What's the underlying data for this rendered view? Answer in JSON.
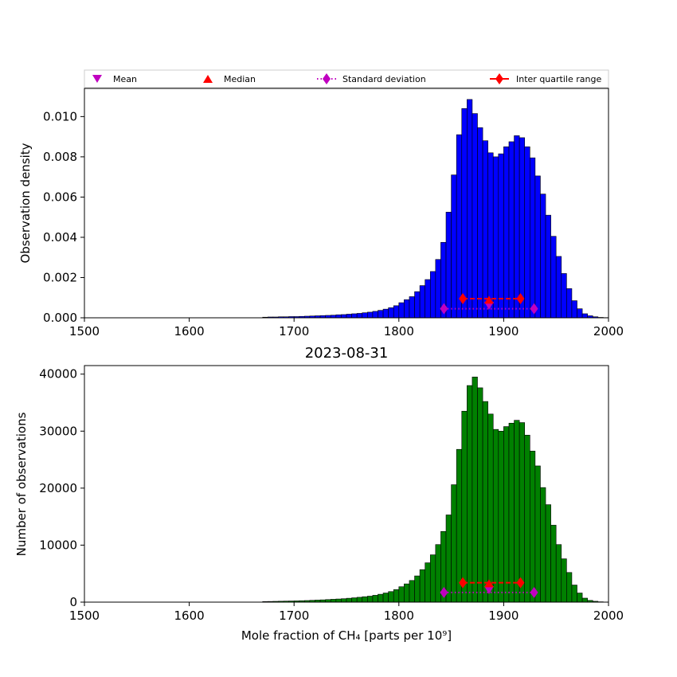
{
  "chart_data": [
    {
      "type": "bar",
      "panel": "density",
      "title": "",
      "xlabel": "",
      "ylabel": "Observation density",
      "xlim": [
        1500,
        2000
      ],
      "ylim": [
        0,
        0.0114
      ],
      "xticks": [
        1500,
        1600,
        1700,
        1800,
        1900,
        2000
      ],
      "xtick_labels": [
        "1500",
        "1600",
        "1700",
        "1800",
        "1900",
        "2000"
      ],
      "yticks": [
        0.0,
        0.002,
        0.004,
        0.006,
        0.008,
        0.01
      ],
      "ytick_labels": [
        "0.000",
        "0.002",
        "0.004",
        "0.006",
        "0.008",
        "0.010"
      ],
      "bar_color": "#0000ff",
      "bin_width": 5,
      "bin_starts": [
        1670,
        1675,
        1680,
        1685,
        1690,
        1695,
        1700,
        1705,
        1710,
        1715,
        1720,
        1725,
        1730,
        1735,
        1740,
        1745,
        1750,
        1755,
        1760,
        1765,
        1770,
        1775,
        1780,
        1785,
        1790,
        1795,
        1800,
        1805,
        1810,
        1815,
        1820,
        1825,
        1830,
        1835,
        1840,
        1845,
        1850,
        1855,
        1860,
        1865,
        1870,
        1875,
        1880,
        1885,
        1890,
        1895,
        1900,
        1905,
        1910,
        1915,
        1920,
        1925,
        1930,
        1935,
        1940,
        1945,
        1950,
        1955,
        1960,
        1965,
        1970,
        1975,
        1980,
        1985,
        1990,
        1995
      ],
      "values": [
        3e-05,
        4e-05,
        4e-05,
        5e-05,
        5e-05,
        6e-05,
        6e-05,
        7e-05,
        8e-05,
        9e-05,
        0.0001,
        0.00011,
        0.00012,
        0.00013,
        0.00015,
        0.00016,
        0.00018,
        0.0002,
        0.00022,
        0.00025,
        0.00028,
        0.00032,
        0.00037,
        0.00043,
        0.0005,
        0.0006,
        0.00075,
        0.0009,
        0.00105,
        0.0013,
        0.0016,
        0.0019,
        0.0023,
        0.0029,
        0.00375,
        0.00525,
        0.0071,
        0.0091,
        0.0104,
        0.01085,
        0.01015,
        0.00945,
        0.0088,
        0.0082,
        0.008,
        0.00815,
        0.0085,
        0.00875,
        0.00905,
        0.00895,
        0.0085,
        0.00795,
        0.00705,
        0.00615,
        0.0051,
        0.00405,
        0.00305,
        0.0022,
        0.00145,
        0.00085,
        0.00045,
        0.0002,
        0.0001,
        5e-05,
        2e-05,
        1e-05
      ],
      "markers": {
        "mean": {
          "x": 1886,
          "y": 0.0006
        },
        "median": {
          "x": 1886,
          "y": 0.0009
        },
        "std": {
          "x_low": 1843,
          "x_high": 1929,
          "y": 0.00045
        },
        "iqr": {
          "x_low": 1861,
          "x_high": 1916,
          "y": 0.00095
        }
      }
    },
    {
      "type": "bar",
      "panel": "counts",
      "title": "2023-08-31",
      "xlabel": "Mole fraction of CH₄ [parts per 10⁹]",
      "ylabel": "Number of observations",
      "xlim": [
        1500,
        2000
      ],
      "ylim": [
        0,
        41500
      ],
      "xticks": [
        1500,
        1600,
        1700,
        1800,
        1900,
        2000
      ],
      "xtick_labels": [
        "1500",
        "1600",
        "1700",
        "1800",
        "1900",
        "2000"
      ],
      "yticks": [
        0,
        10000,
        20000,
        30000,
        40000
      ],
      "ytick_labels": [
        "0",
        "10000",
        "20000",
        "30000",
        "40000"
      ],
      "bar_color": "#008000",
      "bin_width": 5,
      "bin_starts": [
        1670,
        1675,
        1680,
        1685,
        1690,
        1695,
        1700,
        1705,
        1710,
        1715,
        1720,
        1725,
        1730,
        1735,
        1740,
        1745,
        1750,
        1755,
        1760,
        1765,
        1770,
        1775,
        1780,
        1785,
        1790,
        1795,
        1800,
        1805,
        1810,
        1815,
        1820,
        1825,
        1830,
        1835,
        1840,
        1845,
        1850,
        1855,
        1860,
        1865,
        1870,
        1875,
        1880,
        1885,
        1890,
        1895,
        1900,
        1905,
        1910,
        1915,
        1920,
        1925,
        1930,
        1935,
        1940,
        1945,
        1950,
        1955,
        1960,
        1965,
        1970,
        1975,
        1980,
        1985,
        1990,
        1995
      ],
      "values": [
        100,
        120,
        140,
        160,
        180,
        200,
        220,
        250,
        280,
        320,
        360,
        400,
        450,
        500,
        550,
        600,
        680,
        760,
        850,
        950,
        1050,
        1200,
        1380,
        1600,
        1850,
        2200,
        2700,
        3200,
        3800,
        4600,
        5700,
        6900,
        8300,
        10100,
        12400,
        15300,
        20600,
        26800,
        33500,
        38000,
        39500,
        37600,
        35200,
        33000,
        30300,
        30000,
        30800,
        31400,
        31900,
        31500,
        29300,
        26500,
        23900,
        20100,
        17100,
        13500,
        10100,
        7600,
        5200,
        3000,
        1600,
        700,
        300,
        150,
        60,
        20
      ],
      "markers": {
        "mean": {
          "x": 1886,
          "y": 2100
        },
        "median": {
          "x": 1886,
          "y": 3300
        },
        "std": {
          "x_low": 1843,
          "x_high": 1929,
          "y": 1700
        },
        "iqr": {
          "x_low": 1861,
          "x_high": 1916,
          "y": 3400
        }
      }
    }
  ],
  "legend": {
    "items": [
      {
        "label": "Mean",
        "marker": "triangle-down",
        "color": "#c000c0"
      },
      {
        "label": "Median",
        "marker": "triangle-up",
        "color": "#ff0000"
      },
      {
        "label": "Standard deviation",
        "marker": "diamond",
        "color": "#c000c0"
      },
      {
        "label": "Inter quartile range",
        "marker": "diamond",
        "color": "#ff0000"
      }
    ]
  }
}
